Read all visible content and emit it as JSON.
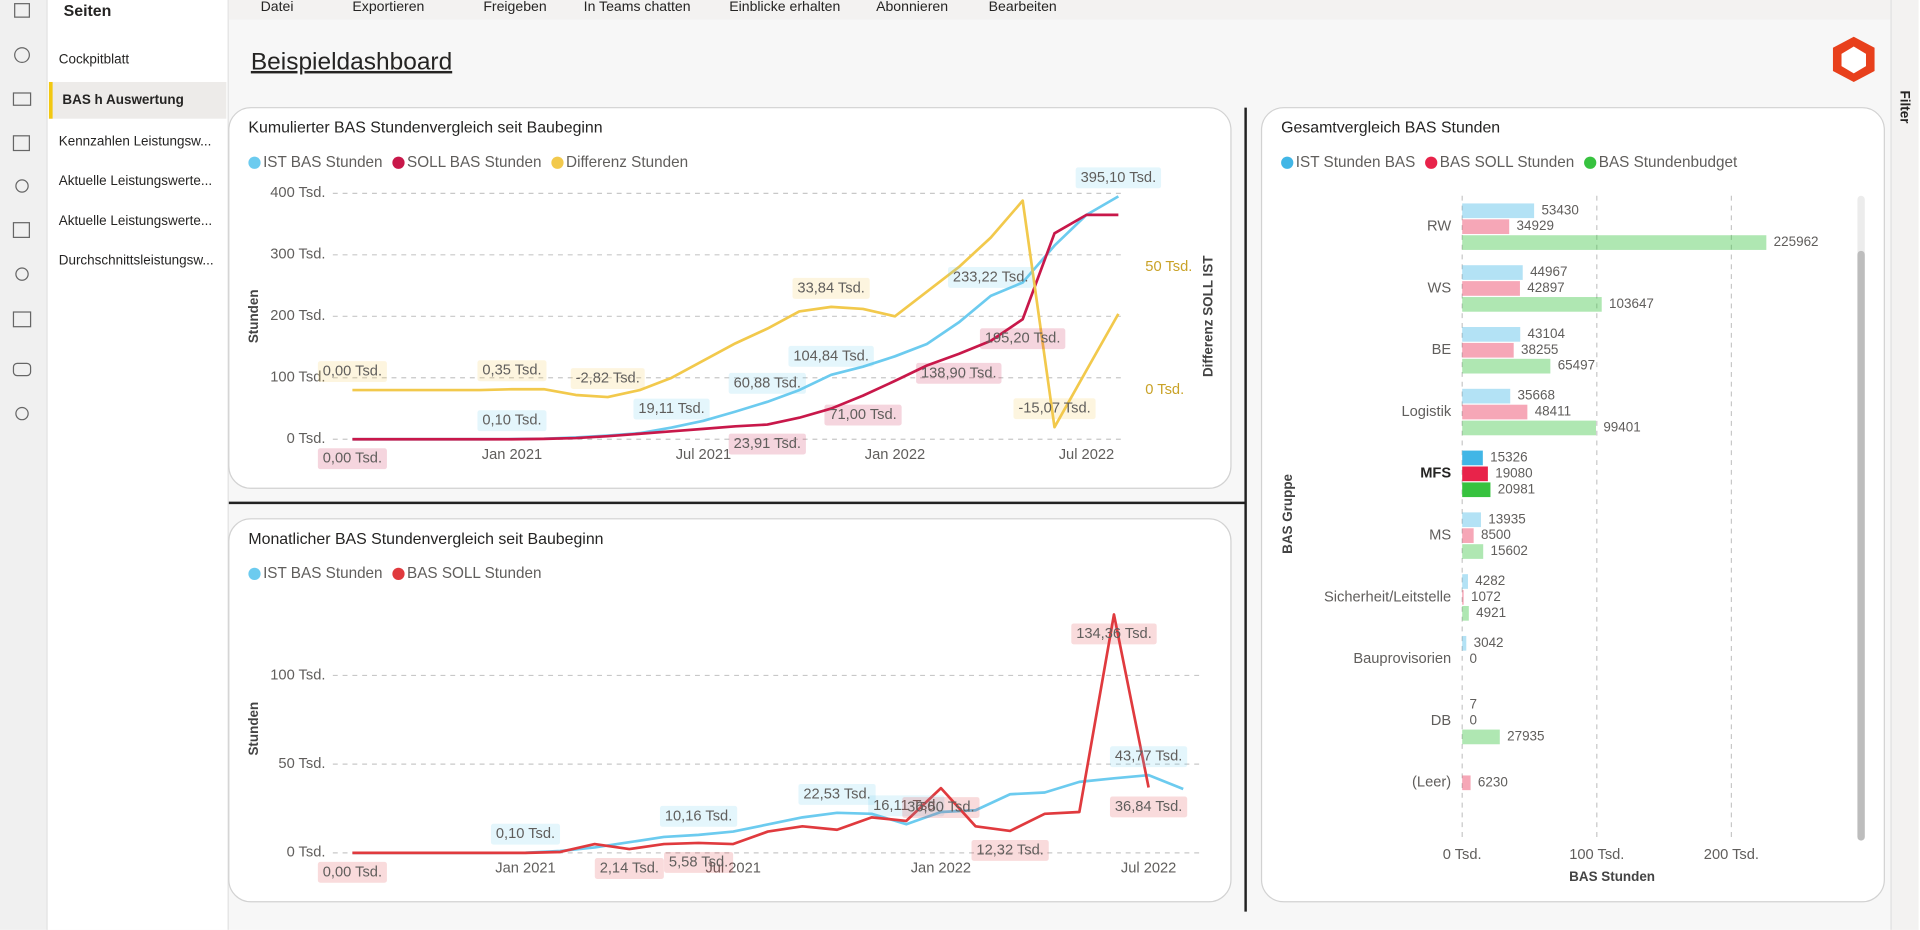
{
  "toolbar": {
    "items": [
      "Datei",
      "Exportieren",
      "Freigeben",
      "In Teams chatten",
      "Einblicke erhalten",
      "Abonnieren",
      "Bearbeiten"
    ]
  },
  "sidebar": {
    "title": "Seiten",
    "pages": [
      "Cockpitblatt",
      "BAS h Auswertung",
      "Kennzahlen Leistungsw...",
      "Aktuelle Leistungswerte...",
      "Aktuelle Leistungswerte...",
      "Durchschnittsleistungsw..."
    ]
  },
  "dashboard": {
    "title": "Beispieldashboard"
  },
  "filter_pane": {
    "label": "Filter"
  },
  "chart_data": [
    {
      "type": "line",
      "title": "Kumulierter BAS Stundenvergleich seit Baubeginn",
      "ylabel": "Stunden",
      "y2label": "Differenz SOLL IST",
      "x": [
        "2020-08",
        "2020-09",
        "2020-10",
        "2020-11",
        "2020-12",
        "2021-01",
        "2021-02",
        "2021-03",
        "2021-04",
        "2021-05",
        "2021-06",
        "2021-07",
        "2021-08",
        "2021-09",
        "2021-10",
        "2021-11",
        "2021-12",
        "2022-01",
        "2022-02",
        "2022-03",
        "2022-04",
        "2022-05",
        "2022-06",
        "2022-07",
        "2022-08"
      ],
      "xlim": [
        "2020-08",
        "2022-08"
      ],
      "xticks": [
        {
          "value": "2021-01",
          "label": "Jan 2021"
        },
        {
          "value": "2021-07",
          "label": "Jul 2021"
        },
        {
          "value": "2022-01",
          "label": "Jan 2022"
        },
        {
          "value": "2022-07",
          "label": "Jul 2022"
        }
      ],
      "ylim": [
        0,
        400000
      ],
      "yticks": [
        {
          "value": 0,
          "label": "0 Tsd."
        },
        {
          "value": 100000,
          "label": "100 Tsd."
        },
        {
          "value": 200000,
          "label": "200 Tsd."
        },
        {
          "value": 300000,
          "label": "300 Tsd."
        },
        {
          "value": 400000,
          "label": "400 Tsd."
        }
      ],
      "y2lim": [
        -20000,
        80000
      ],
      "y2ticks": [
        {
          "value": 0,
          "label": "0 Tsd."
        },
        {
          "value": 50000,
          "label": "50 Tsd."
        }
      ],
      "grid": true,
      "series": [
        {
          "name": "IST BAS Stunden",
          "color": "#6ccbef",
          "values": [
            0,
            0,
            0,
            0,
            0,
            100,
            1000,
            3000,
            6000,
            10000,
            19110,
            30000,
            45000,
            60880,
            80000,
            104840,
            118000,
            135000,
            155000,
            190000,
            233220,
            255000,
            315000,
            365000,
            395100
          ],
          "value_labels": [
            null,
            null,
            null,
            null,
            null,
            "0,10 Tsd.",
            null,
            null,
            null,
            null,
            "19,11 Tsd.",
            null,
            null,
            "60,88 Tsd.",
            null,
            "104,84 Tsd.",
            null,
            null,
            null,
            null,
            "233,22 Tsd.",
            null,
            null,
            null,
            "395,10 Tsd."
          ]
        },
        {
          "name": "SOLL BAS Stunden",
          "color": "#c8184a",
          "values": [
            0,
            0,
            0,
            0,
            0,
            0,
            500,
            2000,
            5000,
            9000,
            13000,
            17000,
            21000,
            23910,
            35000,
            50000,
            71000,
            95000,
            120000,
            138900,
            160000,
            195200,
            335000,
            365000,
            365000
          ],
          "value_labels": [
            "0,00 Tsd.",
            null,
            null,
            null,
            null,
            null,
            null,
            null,
            null,
            null,
            null,
            null,
            null,
            "23,91 Tsd.",
            null,
            null,
            "71,00 Tsd.",
            null,
            null,
            "138,90 Tsd.",
            null,
            "195,20 Tsd.",
            null,
            null,
            null
          ]
        },
        {
          "name": "Differenz Stunden",
          "color": "#f2c94c",
          "axis": "y2",
          "values": [
            0,
            0,
            0,
            0,
            0,
            350,
            350,
            -2000,
            -2820,
            0,
            5000,
            12000,
            19000,
            25000,
            32000,
            33840,
            33000,
            30000,
            40000,
            50000,
            62000,
            77000,
            -15070,
            8000,
            31000
          ],
          "value_labels": [
            "0,00 Tsd.",
            null,
            null,
            null,
            null,
            "0,35 Tsd.",
            null,
            null,
            "-2,82 Tsd.",
            null,
            null,
            null,
            null,
            null,
            null,
            "33,84 Tsd.",
            null,
            null,
            null,
            null,
            null,
            null,
            "-15,07 Tsd.",
            null,
            null
          ]
        }
      ]
    },
    {
      "type": "line",
      "title": "Monatlicher BAS Stundenvergleich seit Baubeginn",
      "ylabel": "Stunden",
      "x": [
        "2020-08",
        "2020-09",
        "2020-10",
        "2020-11",
        "2020-12",
        "2021-01",
        "2021-02",
        "2021-03",
        "2021-04",
        "2021-05",
        "2021-06",
        "2021-07",
        "2021-08",
        "2021-09",
        "2021-10",
        "2021-11",
        "2021-12",
        "2022-01",
        "2022-02",
        "2022-03",
        "2022-04",
        "2022-05",
        "2022-06",
        "2022-07",
        "2022-08"
      ],
      "xlim": [
        "2020-08",
        "2022-08"
      ],
      "xticks": [
        {
          "value": "2021-01",
          "label": "Jan 2021"
        },
        {
          "value": "2021-07",
          "label": "Jul 2021"
        },
        {
          "value": "2022-01",
          "label": "Jan 2022"
        },
        {
          "value": "2022-07",
          "label": "Jul 2022"
        }
      ],
      "ylim": [
        0,
        140000
      ],
      "yticks": [
        {
          "value": 0,
          "label": "0 Tsd."
        },
        {
          "value": 50000,
          "label": "50 Tsd."
        },
        {
          "value": 100000,
          "label": "100 Tsd."
        }
      ],
      "grid": true,
      "series": [
        {
          "name": "IST BAS Stunden",
          "color": "#6ccbef",
          "values": [
            0,
            0,
            0,
            0,
            0,
            100,
            1000,
            3000,
            6000,
            9000,
            10160,
            12000,
            16000,
            20000,
            22530,
            22000,
            16110,
            23000,
            24000,
            33000,
            34000,
            40000,
            42000,
            43770,
            36000
          ],
          "value_labels": [
            null,
            null,
            null,
            null,
            null,
            "0,10 Tsd.",
            null,
            null,
            null,
            null,
            "10,16 Tsd.",
            null,
            null,
            null,
            "22,53 Tsd.",
            null,
            "16,11 Tsd.",
            null,
            null,
            null,
            null,
            null,
            null,
            "43,77 Tsd.",
            null
          ]
        },
        {
          "name": "BAS SOLL Stunden",
          "color": "#e03a3e",
          "values": [
            0,
            0,
            0,
            0,
            0,
            0,
            500,
            5000,
            2140,
            5000,
            5580,
            5000,
            12000,
            15000,
            13000,
            20000,
            18000,
            36500,
            15000,
            12320,
            22000,
            23000,
            134360,
            36840,
            null
          ],
          "value_labels": [
            "0,00 Tsd.",
            null,
            null,
            null,
            null,
            null,
            null,
            null,
            "2,14 Tsd.",
            null,
            "5,58 Tsd.",
            null,
            null,
            null,
            null,
            null,
            null,
            "36,50 Tsd.",
            null,
            "12,32 Tsd.",
            null,
            null,
            "134,36 Tsd.",
            "36,84 Tsd.",
            null
          ]
        }
      ]
    },
    {
      "type": "hbar",
      "title": "Gesamtvergleich BAS Stunden",
      "xlabel": "BAS Stunden",
      "ylabel": "BAS Gruppe",
      "categories": [
        "RW",
        "WS",
        "BE",
        "Logistik",
        "MFS",
        "MS",
        "Sicherheit/Leitstelle",
        "Bauprovisorien",
        "DB",
        "(Leer)"
      ],
      "xlim": [
        0,
        300000
      ],
      "xticks": [
        {
          "value": 0,
          "label": "0 Tsd."
        },
        {
          "value": 100000,
          "label": "100 Tsd."
        },
        {
          "value": 200000,
          "label": "200 Tsd."
        }
      ],
      "grid": true,
      "highlight": "MFS",
      "series": [
        {
          "name": "IST Stunden BAS",
          "color": "#41b6e6",
          "values": [
            53430,
            44967,
            43104,
            35668,
            15326,
            13935,
            4282,
            3042,
            7,
            null
          ]
        },
        {
          "name": "BAS SOLL Stunden",
          "color": "#e8234a",
          "values": [
            34929,
            42897,
            38255,
            48411,
            19080,
            8500,
            1072,
            0,
            0,
            6230
          ]
        },
        {
          "name": "BAS Stundenbudget",
          "color": "#37c23f",
          "values": [
            225962,
            103647,
            65497,
            99401,
            20981,
            15602,
            4921,
            null,
            27935,
            null
          ]
        }
      ]
    }
  ]
}
